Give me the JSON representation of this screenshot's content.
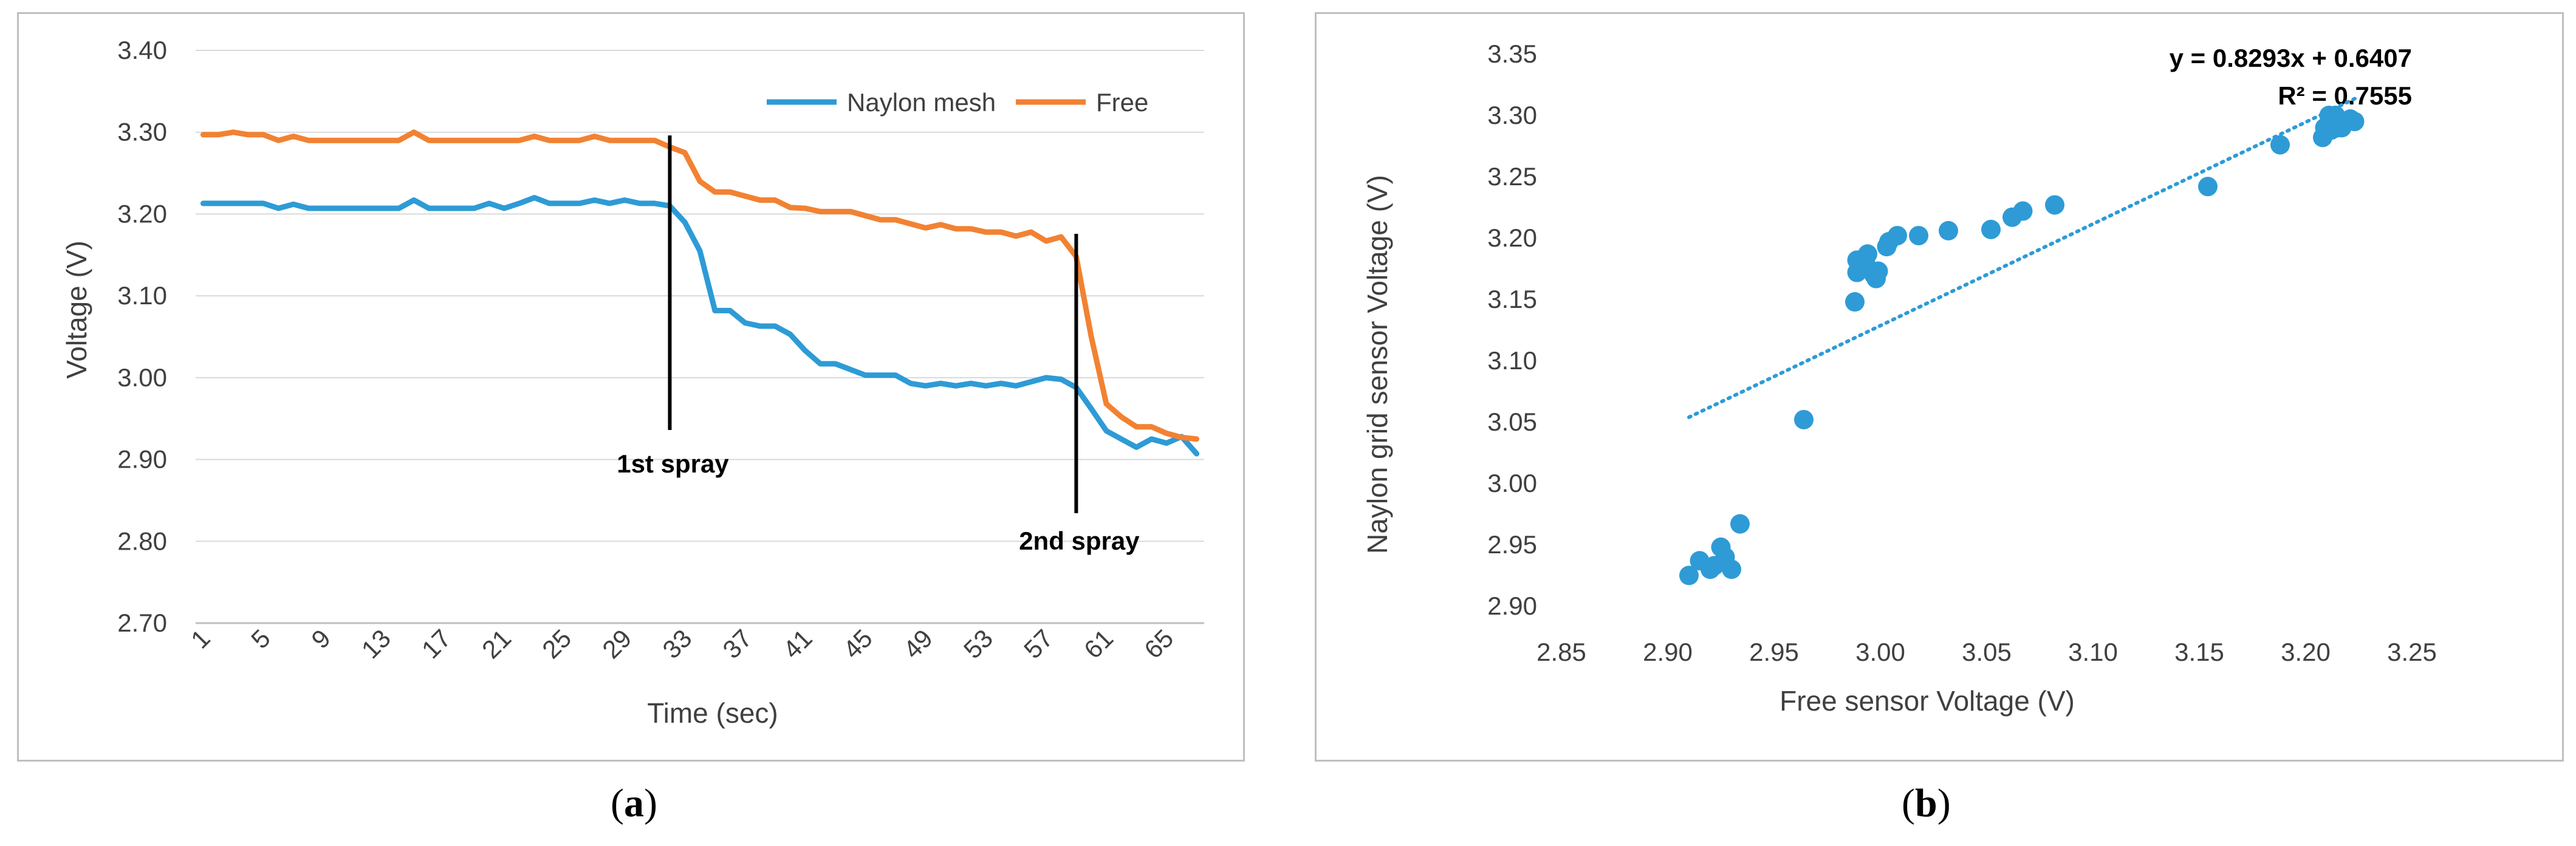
{
  "panels": {
    "a_label_open": "(",
    "a_label": "a",
    "a_label_close": ")",
    "b_label_open": "(",
    "b_label": "b",
    "b_label_close": ")"
  },
  "colors": {
    "naylon": "#2e9bd6",
    "free": "#f28232",
    "grid": "#d9d9d9",
    "axis": "#bfbfbf",
    "text": "#404040"
  },
  "chart_data": [
    {
      "type": "line",
      "title": "",
      "xlabel": "Time (sec)",
      "ylabel": "Voltage (V)",
      "ylim": [
        2.7,
        3.4
      ],
      "yticks": [
        "2.70",
        "2.80",
        "2.90",
        "3.00",
        "3.10",
        "3.20",
        "3.30",
        "3.40"
      ],
      "xticks": [
        "1",
        "5",
        "9",
        "13",
        "17",
        "21",
        "25",
        "29",
        "33",
        "37",
        "41",
        "45",
        "49",
        "53",
        "57",
        "61",
        "65"
      ],
      "x_count": 67,
      "grid": "horizontal",
      "legend": "top-right",
      "series": [
        {
          "name": "Naylon mesh",
          "color": "#2e9bd6",
          "values": [
            3.213,
            3.213,
            3.213,
            3.213,
            3.213,
            3.207,
            3.212,
            3.207,
            3.207,
            3.207,
            3.207,
            3.207,
            3.207,
            3.207,
            3.217,
            3.207,
            3.207,
            3.207,
            3.207,
            3.213,
            3.207,
            3.213,
            3.22,
            3.213,
            3.213,
            3.213,
            3.217,
            3.213,
            3.217,
            3.213,
            3.213,
            3.21,
            3.19,
            3.155,
            3.082,
            3.082,
            3.067,
            3.063,
            3.063,
            3.053,
            3.033,
            3.017,
            3.017,
            3.01,
            3.003,
            3.003,
            3.003,
            2.993,
            2.99,
            2.993,
            2.99,
            2.993,
            2.99,
            2.993,
            2.99,
            2.995,
            3.0,
            2.998,
            2.988,
            2.962,
            2.935,
            2.925,
            2.915,
            2.925,
            2.92,
            2.928,
            2.907
          ]
        },
        {
          "name": "Free",
          "color": "#f28232",
          "values": [
            3.297,
            3.297,
            3.3,
            3.297,
            3.297,
            3.29,
            3.295,
            3.29,
            3.29,
            3.29,
            3.29,
            3.29,
            3.29,
            3.29,
            3.3,
            3.29,
            3.29,
            3.29,
            3.29,
            3.29,
            3.29,
            3.29,
            3.295,
            3.29,
            3.29,
            3.29,
            3.295,
            3.29,
            3.29,
            3.29,
            3.29,
            3.282,
            3.275,
            3.24,
            3.227,
            3.227,
            3.222,
            3.217,
            3.217,
            3.208,
            3.207,
            3.203,
            3.203,
            3.203,
            3.198,
            3.193,
            3.193,
            3.188,
            3.183,
            3.187,
            3.182,
            3.182,
            3.178,
            3.178,
            3.173,
            3.178,
            3.167,
            3.172,
            3.148,
            3.05,
            2.968,
            2.952,
            2.94,
            2.94,
            2.932,
            2.927,
            2.925
          ]
        }
      ],
      "annotations": [
        {
          "text": "1st spray",
          "x_index": 31
        },
        {
          "text": "2nd spray",
          "x_index": 58
        }
      ]
    },
    {
      "type": "scatter",
      "title": "",
      "xlabel": "Free sensor Voltage (V)",
      "ylabel": "Naylon grid sensor Voltage (V)",
      "xlim": [
        2.85,
        3.25
      ],
      "ylim": [
        2.9,
        3.35
      ],
      "xticks": [
        "2.85",
        "2.90",
        "2.95",
        "3.00",
        "3.05",
        "3.10",
        "3.15",
        "3.20",
        "3.25"
      ],
      "yticks": [
        "2.90",
        "2.95",
        "3.00",
        "3.05",
        "3.10",
        "3.15",
        "3.20",
        "3.25",
        "3.30",
        "3.35"
      ],
      "grid": "none",
      "trendline": {
        "slope": 0.8293,
        "intercept": 0.6407,
        "x_range": [
          2.91,
          3.225
        ],
        "equation": "y = 0.8293x + 0.6407",
        "r_squared": "R² = 0.7555"
      },
      "points": [
        [
          2.91,
          2.925
        ],
        [
          2.915,
          2.937
        ],
        [
          2.92,
          2.93
        ],
        [
          2.922,
          2.933
        ],
        [
          2.925,
          2.948
        ],
        [
          2.927,
          2.94
        ],
        [
          2.93,
          2.93
        ],
        [
          2.934,
          2.967
        ],
        [
          2.964,
          3.052
        ],
        [
          2.988,
          3.148
        ],
        [
          2.989,
          3.172
        ],
        [
          2.989,
          3.182
        ],
        [
          2.991,
          3.175
        ],
        [
          2.993,
          3.18
        ],
        [
          2.994,
          3.187
        ],
        [
          2.997,
          3.17
        ],
        [
          2.999,
          3.173
        ],
        [
          2.998,
          3.167
        ],
        [
          3.003,
          3.193
        ],
        [
          3.004,
          3.197
        ],
        [
          3.008,
          3.202
        ],
        [
          3.018,
          3.202
        ],
        [
          3.032,
          3.206
        ],
        [
          3.052,
          3.207
        ],
        [
          3.062,
          3.217
        ],
        [
          3.067,
          3.222
        ],
        [
          3.082,
          3.227
        ],
        [
          3.154,
          3.242
        ],
        [
          3.188,
          3.276
        ],
        [
          3.208,
          3.282
        ],
        [
          3.209,
          3.29
        ],
        [
          3.211,
          3.3
        ],
        [
          3.213,
          3.297
        ],
        [
          3.215,
          3.29
        ],
        [
          3.217,
          3.29
        ],
        [
          3.219,
          3.295
        ],
        [
          3.221,
          3.297
        ],
        [
          3.223,
          3.295
        ],
        [
          3.212,
          3.288
        ],
        [
          3.214,
          3.3
        ]
      ]
    }
  ]
}
